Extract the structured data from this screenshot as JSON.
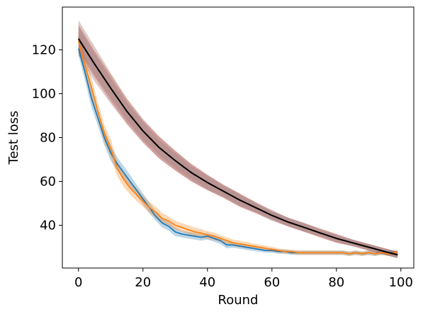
{
  "chart_data": {
    "type": "line",
    "xlabel": "Round",
    "ylabel": "Test loss",
    "xlim": [
      -5,
      104
    ],
    "ylim": [
      20.5,
      139.5
    ],
    "xticks": [
      0,
      20,
      40,
      60,
      80,
      100
    ],
    "yticks": [
      40,
      60,
      80,
      100,
      120
    ],
    "grid": false,
    "legend": "none",
    "series": [
      {
        "color": "#1f77b4",
        "x": [
          0,
          2,
          4,
          6,
          8,
          10,
          12,
          14,
          16,
          18,
          20,
          22,
          24,
          26,
          28,
          30,
          32,
          34,
          36,
          38,
          40,
          42,
          44,
          46,
          48,
          50,
          52,
          54,
          56,
          58,
          60,
          62,
          64,
          66,
          68,
          70,
          72,
          74,
          76,
          78,
          80,
          82,
          84,
          86,
          88,
          90,
          92,
          94,
          96,
          98,
          99
        ],
        "y": [
          120.5,
          110,
          98,
          89,
          80,
          73,
          68,
          64,
          60,
          56,
          52,
          48,
          44,
          41,
          39.5,
          37,
          36,
          35.5,
          35,
          34.5,
          35,
          34,
          33,
          31,
          31,
          30.5,
          30,
          29.5,
          29,
          28.5,
          28.5,
          28,
          28,
          27.5,
          27.5,
          27.5,
          27.5,
          27.5,
          27.5,
          27.5,
          27.5,
          27.5,
          27,
          27.5,
          27,
          27.5,
          27,
          27.5,
          27.5,
          27.5,
          27.5
        ],
        "band": [
          3,
          4,
          4,
          3.5,
          3.5,
          3.5,
          3,
          3,
          3,
          2.5,
          2.5,
          2.5,
          2,
          2,
          2,
          2,
          1.5,
          1.5,
          1.5,
          1.5,
          1.5,
          1.5,
          1.5,
          1.5,
          1.2,
          1.2,
          1.2,
          1.2,
          1,
          1,
          1,
          1,
          1,
          1,
          1,
          1,
          1,
          1,
          1,
          1,
          1,
          1,
          1,
          1,
          1,
          1,
          1,
          1,
          1,
          1,
          1
        ]
      },
      {
        "color": "#ff7f0e",
        "x": [
          0,
          2,
          4,
          6,
          8,
          10,
          12,
          14,
          16,
          18,
          20,
          22,
          24,
          26,
          28,
          30,
          32,
          34,
          36,
          38,
          40,
          42,
          44,
          46,
          48,
          50,
          52,
          54,
          56,
          58,
          60,
          62,
          64,
          66,
          68,
          70,
          72,
          74,
          76,
          78,
          80,
          82,
          84,
          86,
          88,
          90,
          92,
          94,
          96,
          98,
          99
        ],
        "y": [
          124,
          113,
          103,
          92,
          82,
          75,
          66,
          61,
          57,
          54,
          51,
          48,
          46,
          43,
          42,
          40,
          39,
          38,
          37,
          36.5,
          35.5,
          35,
          34,
          33,
          32,
          31.5,
          31,
          30.5,
          30,
          29.5,
          29,
          28.5,
          28,
          28,
          27.5,
          27.5,
          27.5,
          27.5,
          27.5,
          27.5,
          27.5,
          27.5,
          27,
          27.5,
          27,
          27.5,
          27,
          27.5,
          27,
          27.5,
          27.5
        ],
        "band": [
          4,
          4.5,
          4.5,
          4,
          4,
          4,
          3.5,
          3.5,
          3,
          3,
          2.5,
          2.5,
          2.5,
          2.5,
          2,
          2,
          2,
          2,
          2,
          1.8,
          1.8,
          1.8,
          1.5,
          1.5,
          1.5,
          1.5,
          1.5,
          1.2,
          1.2,
          1.2,
          1.2,
          1,
          1,
          1,
          1,
          1,
          1,
          1,
          1,
          1,
          1,
          1,
          1,
          1,
          1,
          1,
          1,
          1,
          1,
          1,
          1
        ]
      },
      {
        "color": "#d62728",
        "x": [
          0,
          5,
          10,
          15,
          20,
          25,
          30,
          35,
          40,
          45,
          50,
          55,
          60,
          65,
          70,
          75,
          80,
          85,
          90,
          95,
          99
        ],
        "y": [
          125.5,
          113.5,
          102.5,
          92,
          83,
          75.5,
          69.5,
          64,
          59.5,
          55.5,
          51.5,
          48,
          44.5,
          41.5,
          39,
          36.5,
          34,
          32,
          30,
          28,
          26.5
        ],
        "band": [
          6,
          6,
          6,
          5.5,
          5,
          5,
          4.5,
          4,
          3.5,
          3,
          3,
          2.5,
          2,
          2,
          2,
          2,
          2,
          1.5,
          1.5,
          1.5,
          1.5
        ]
      },
      {
        "color": "#8c564b",
        "x": [
          0,
          5,
          10,
          15,
          20,
          25,
          30,
          35,
          40,
          45,
          50,
          55,
          60,
          65,
          70,
          75,
          80,
          85,
          90,
          95,
          99
        ],
        "y": [
          125.5,
          113.5,
          102.5,
          92,
          83,
          75.5,
          69.5,
          64,
          59.5,
          55.5,
          51.5,
          48,
          44.5,
          41.5,
          39,
          36.5,
          34,
          32,
          30,
          28,
          26.5
        ],
        "band": [
          8,
          8,
          7,
          6,
          5.5,
          5,
          4.5,
          4,
          3.5,
          3,
          3,
          2.5,
          2.5,
          2,
          2,
          2,
          2,
          1.5,
          1.5,
          1.5,
          1.5
        ]
      },
      {
        "color": "#7f7f7f",
        "x": [
          0,
          5,
          10,
          15,
          20,
          25,
          30,
          35,
          40,
          45,
          50,
          55,
          60,
          65,
          70,
          75,
          80,
          85,
          90,
          95,
          99
        ],
        "y": [
          125.5,
          113.5,
          102.5,
          92,
          83,
          75.5,
          69.5,
          64,
          59.5,
          55.5,
          51.5,
          48,
          44.5,
          41.5,
          39,
          36.5,
          34,
          32,
          30,
          28,
          26.5
        ],
        "band": [
          5,
          5,
          4.5,
          4,
          4,
          3.5,
          3.5,
          3,
          3,
          2.5,
          2.5,
          2,
          2,
          2,
          2,
          1.5,
          1.5,
          1.5,
          1.5,
          1.5,
          1.5
        ]
      },
      {
        "color": "#000000",
        "x": [
          0,
          5,
          10,
          15,
          20,
          25,
          30,
          35,
          40,
          45,
          50,
          55,
          60,
          65,
          70,
          75,
          80,
          85,
          90,
          95,
          99
        ],
        "y": [
          125,
          113.5,
          102.5,
          92,
          83,
          75.5,
          69.5,
          64,
          59.5,
          55.5,
          51.5,
          48,
          44.5,
          41.5,
          39,
          36.5,
          34,
          32,
          30,
          28,
          26.5
        ],
        "band": null
      }
    ]
  }
}
